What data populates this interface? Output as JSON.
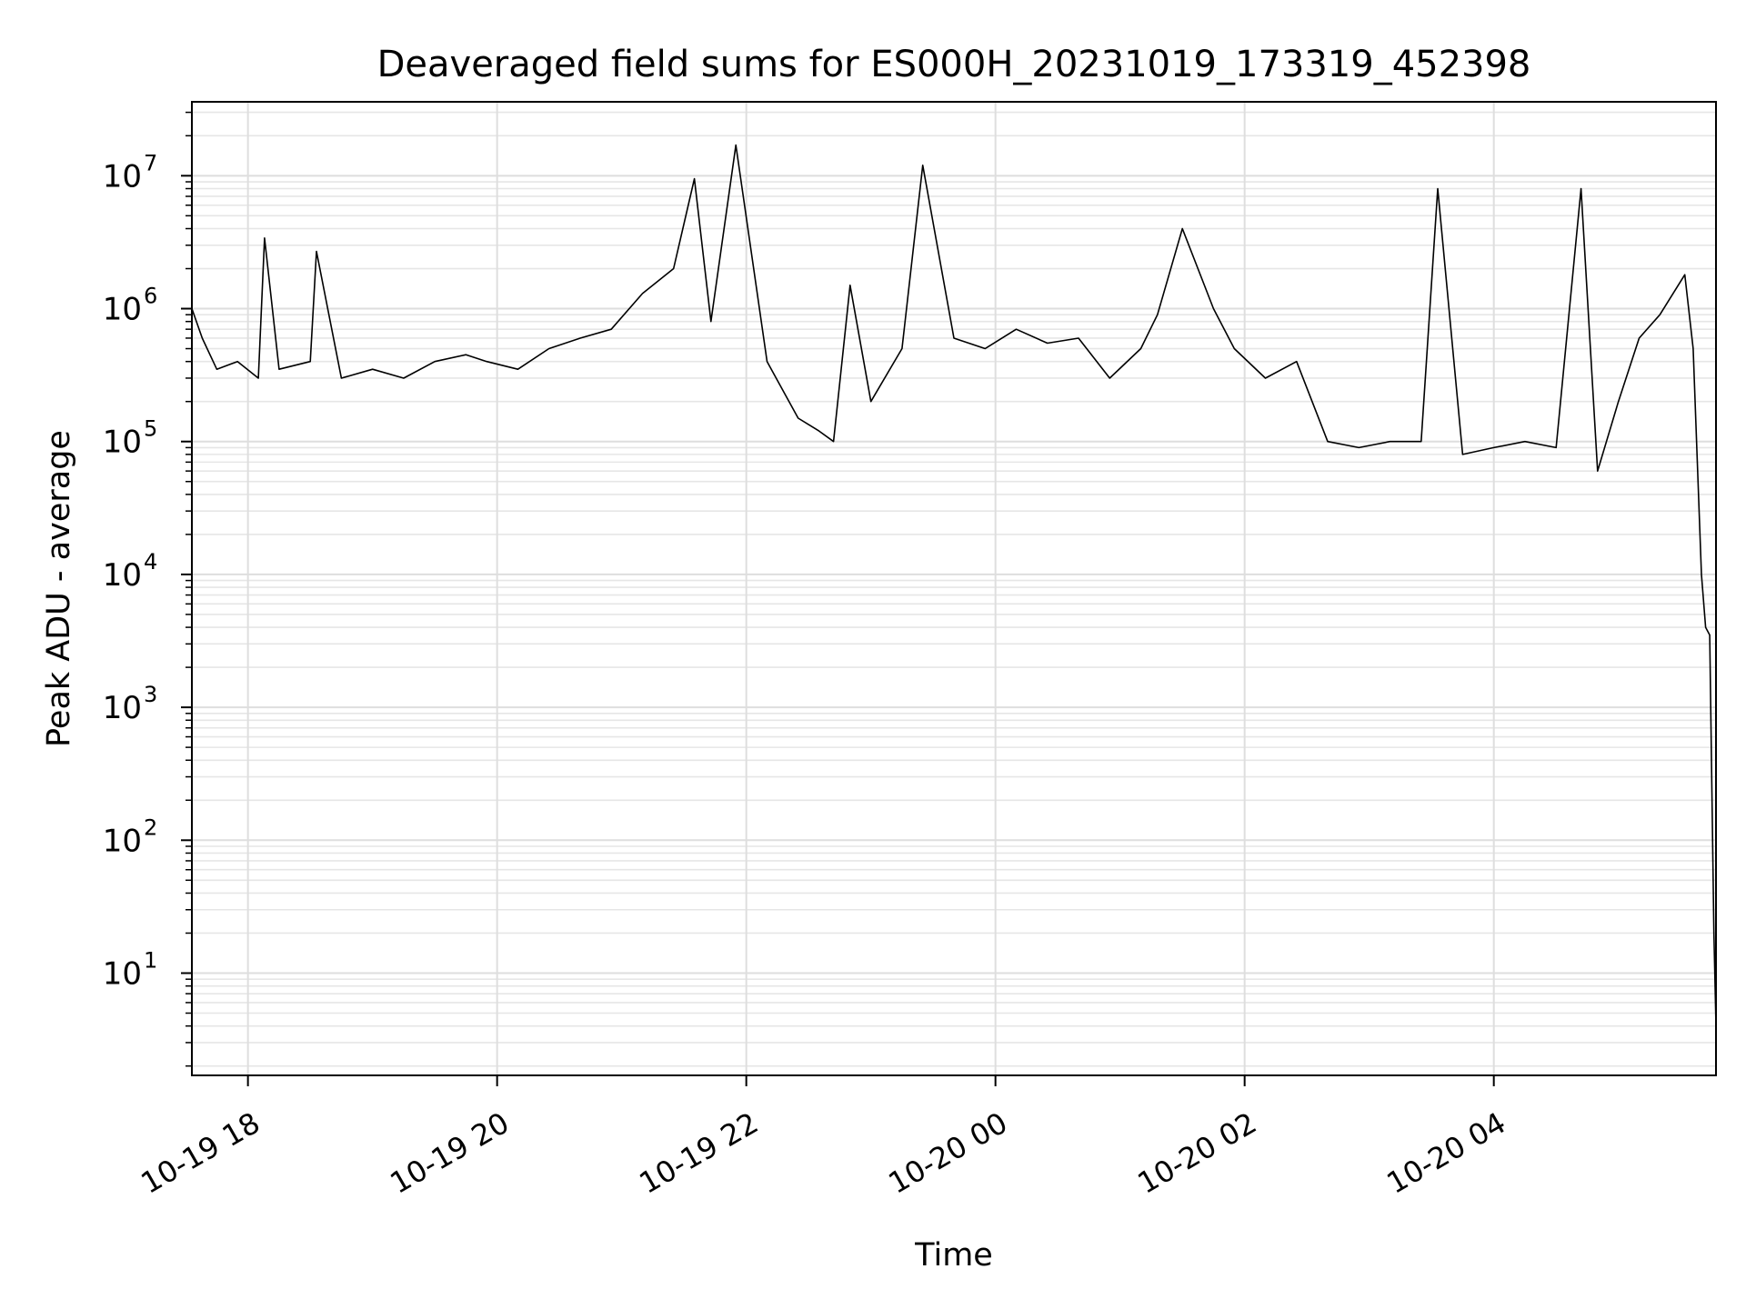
{
  "chart_data": {
    "type": "line",
    "title": "Deaveraged field sums for ES000H_20231019_173319_452398",
    "xlabel": "Time",
    "ylabel": "Peak ADU - average",
    "yscale": "log",
    "ylim": [
      1.7,
      36000000.0
    ],
    "xlim": [
      "2023-10-19T17:33",
      "2023-10-20T05:47"
    ],
    "grid": true,
    "line_color": "#000000",
    "x_ticks": [
      {
        "value": "2023-10-19T18:00",
        "label": "10-19 18"
      },
      {
        "value": "2023-10-19T20:00",
        "label": "10-19 20"
      },
      {
        "value": "2023-10-19T22:00",
        "label": "10-19 22"
      },
      {
        "value": "2023-10-20T00:00",
        "label": "10-20 00"
      },
      {
        "value": "2023-10-20T02:00",
        "label": "10-20 02"
      },
      {
        "value": "2023-10-20T04:00",
        "label": "10-20 04"
      }
    ],
    "y_ticks": [
      {
        "value": 10,
        "base": "10",
        "exp": "1"
      },
      {
        "value": 100,
        "base": "10",
        "exp": "2"
      },
      {
        "value": 1000,
        "base": "10",
        "exp": "3"
      },
      {
        "value": 10000,
        "base": "10",
        "exp": "4"
      },
      {
        "value": 100000,
        "base": "10",
        "exp": "5"
      },
      {
        "value": 1000000,
        "base": "10",
        "exp": "6"
      },
      {
        "value": 10000000,
        "base": "10",
        "exp": "7"
      }
    ],
    "series": [
      {
        "x": [
          "2023-10-19T17:33",
          "2023-10-19T17:38",
          "2023-10-19T17:45",
          "2023-10-19T17:55",
          "2023-10-19T18:05",
          "2023-10-19T18:08",
          "2023-10-19T18:15",
          "2023-10-19T18:30",
          "2023-10-19T18:33",
          "2023-10-19T18:45",
          "2023-10-19T19:00",
          "2023-10-19T19:15",
          "2023-10-19T19:30",
          "2023-10-19T19:45",
          "2023-10-19T19:55",
          "2023-10-19T20:10",
          "2023-10-19T20:25",
          "2023-10-19T20:40",
          "2023-10-19T20:55",
          "2023-10-19T21:10",
          "2023-10-19T21:15",
          "2023-10-19T21:25",
          "2023-10-19T21:35",
          "2023-10-19T21:43",
          "2023-10-19T21:55",
          "2023-10-19T22:10",
          "2023-10-19T22:25",
          "2023-10-19T22:35",
          "2023-10-19T22:42",
          "2023-10-19T22:50",
          "2023-10-19T23:00",
          "2023-10-19T23:15",
          "2023-10-19T23:25",
          "2023-10-19T23:40",
          "2023-10-19T23:55",
          "2023-10-20T00:10",
          "2023-10-20T00:25",
          "2023-10-20T00:40",
          "2023-10-20T00:55",
          "2023-10-20T01:10",
          "2023-10-20T01:18",
          "2023-10-20T01:30",
          "2023-10-20T01:45",
          "2023-10-20T01:55",
          "2023-10-20T02:10",
          "2023-10-20T02:25",
          "2023-10-20T02:40",
          "2023-10-20T02:55",
          "2023-10-20T03:10",
          "2023-10-20T03:25",
          "2023-10-20T03:33",
          "2023-10-20T03:45",
          "2023-10-20T04:00",
          "2023-10-20T04:15",
          "2023-10-20T04:30",
          "2023-10-20T04:42",
          "2023-10-20T04:50",
          "2023-10-20T05:00",
          "2023-10-20T05:10",
          "2023-10-20T05:20",
          "2023-10-20T05:32",
          "2023-10-20T05:36",
          "2023-10-20T05:40",
          "2023-10-20T05:42",
          "2023-10-20T05:44",
          "2023-10-20T05:46",
          "2023-10-20T05:47"
        ],
        "y": [
          1000000,
          600000,
          350000,
          400000,
          300000,
          3400000,
          350000,
          400000,
          2700000,
          300000,
          350000,
          300000,
          400000,
          450000,
          400000,
          350000,
          500000,
          600000,
          700000,
          1300000,
          1500000,
          2000000,
          9500000,
          800000,
          17000000,
          400000,
          150000,
          120000,
          100000,
          1500000,
          200000,
          500000,
          12000000,
          600000,
          500000,
          700000,
          550000,
          600000,
          300000,
          500000,
          900000,
          4000000,
          1000000,
          500000,
          300000,
          400000,
          100000,
          90000,
          100000,
          100000,
          8000000,
          80000,
          90000,
          100000,
          90000,
          8000000,
          60000,
          200000,
          600000,
          900000,
          1800000,
          500000,
          10000,
          4000,
          3500,
          20,
          4
        ]
      }
    ]
  }
}
